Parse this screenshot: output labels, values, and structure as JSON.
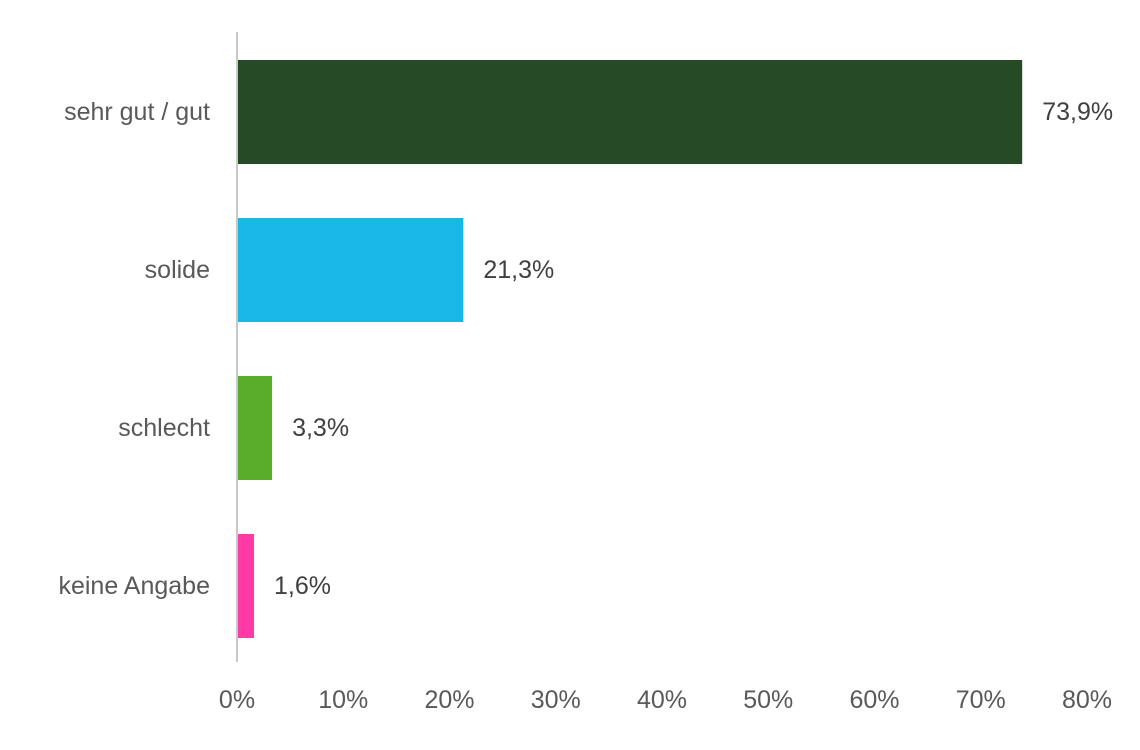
{
  "chart_data": {
    "type": "bar",
    "orientation": "horizontal",
    "categories": [
      "sehr gut / gut",
      "solide",
      "schlecht",
      "keine Angabe"
    ],
    "values": [
      73.9,
      21.3,
      3.3,
      1.6
    ],
    "value_labels": [
      "73,9%",
      "21,3%",
      "3,3%",
      "1,6%"
    ],
    "colors": [
      "#264a25",
      "#19b6e8",
      "#58ad2b",
      "#ff3aa6"
    ],
    "xlim": [
      0,
      80
    ],
    "xticks": [
      0,
      10,
      20,
      30,
      40,
      50,
      60,
      70,
      80
    ],
    "xtick_labels": [
      "0%",
      "10%",
      "20%",
      "30%",
      "40%",
      "50%",
      "60%",
      "70%",
      "80%"
    ],
    "title": "",
    "xlabel": "",
    "ylabel": "",
    "grid": false,
    "legend": "none"
  }
}
